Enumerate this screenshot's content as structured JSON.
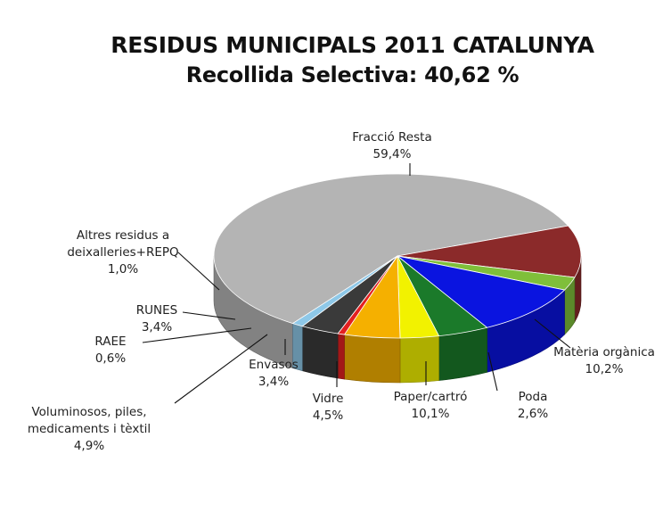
{
  "chart_data": {
    "type": "pie",
    "title": "RESIDUS MUNICIPALS 2011 CATALUNYA",
    "subtitle": "Recollida Selectiva: 40,62 %",
    "slices": [
      {
        "label": "Fracció Resta",
        "display": "59,4%",
        "value": 59.4,
        "color": "#b4b4b4"
      },
      {
        "label": "Matèria orgànica",
        "display": "10,2%",
        "value": 10.2,
        "color": "#8b2a2a"
      },
      {
        "label": "Poda",
        "display": "2,6%",
        "value": 2.6,
        "color": "#7fbf3a"
      },
      {
        "label": "Paper/cartró",
        "display": "10,1%",
        "value": 10.1,
        "color": "#0a14e0"
      },
      {
        "label": "Vidre",
        "display": "4,5%",
        "value": 4.5,
        "color": "#1b7a2a"
      },
      {
        "label": "Envasos",
        "display": "3,4%",
        "value": 3.4,
        "color": "#f2f200"
      },
      {
        "label": "Voluminosos, piles, medicaments i tèxtil",
        "label_lines": [
          "Voluminosos, piles,",
          "medicaments i tèxtil"
        ],
        "display": "4,9%",
        "value": 4.9,
        "color": "#f5b000"
      },
      {
        "label": "RAEE",
        "display": "0,6%",
        "value": 0.6,
        "color": "#e32020"
      },
      {
        "label": "RUNES",
        "display": "3,4%",
        "value": 3.4,
        "color": "#3a3a3a"
      },
      {
        "label": "Altres residus a deixalleries+REPQ",
        "label_lines": [
          "Altres residus a",
          "deixalleries+REPQ"
        ],
        "display": "1,0%",
        "value": 1.0,
        "color": "#8ec8e8"
      }
    ],
    "legend": "none"
  }
}
